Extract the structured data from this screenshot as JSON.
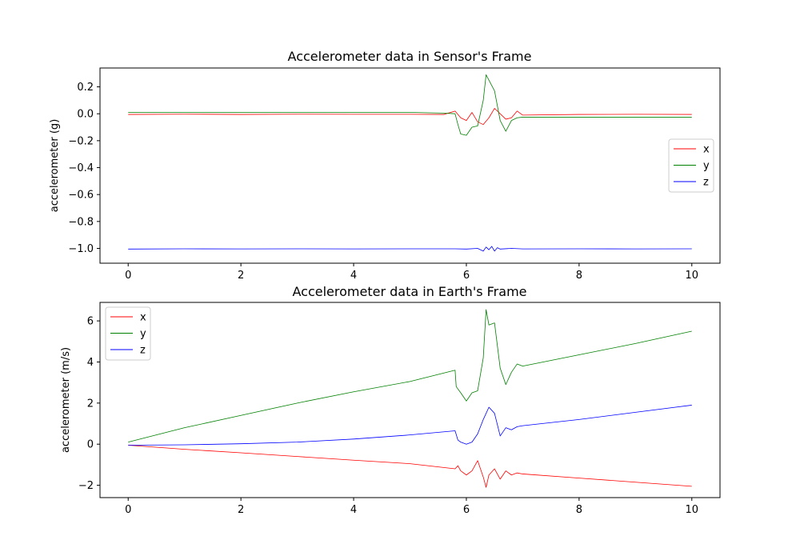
{
  "colors": {
    "x": "#ff0000",
    "y": "#008000",
    "z": "#0000ff"
  },
  "chart_data": [
    {
      "type": "line",
      "title": "Accelerometer data in Sensor's Frame",
      "xlabel": "",
      "ylabel": "accelerometer (g)",
      "xlim": [
        -0.5,
        10.5
      ],
      "ylim": [
        -1.11,
        0.34
      ],
      "xticks": [
        0,
        2,
        4,
        6,
        8,
        10
      ],
      "xtick_labels": [
        "0",
        "2",
        "4",
        "6",
        "8",
        "10"
      ],
      "yticks": [
        0.2,
        0.0,
        -0.2,
        -0.4,
        -0.6,
        -0.8,
        -1.0
      ],
      "ytick_labels": [
        "0.2",
        "0.0",
        "−0.2",
        "−0.4",
        "−0.6",
        "−0.8",
        "−1.0"
      ],
      "legend_placement": "center-right",
      "series": [
        {
          "name": "x",
          "color": "#ff0000",
          "x": [
            0,
            1,
            2,
            3,
            4,
            5,
            5.6,
            5.8,
            5.9,
            6.0,
            6.1,
            6.2,
            6.3,
            6.4,
            6.5,
            6.6,
            6.7,
            6.8,
            6.9,
            7.0,
            8,
            9,
            10
          ],
          "y": [
            -0.005,
            -0.003,
            -0.005,
            -0.003,
            -0.004,
            -0.004,
            -0.005,
            0.02,
            -0.03,
            -0.05,
            0.01,
            -0.06,
            -0.08,
            -0.03,
            0.04,
            0.0,
            -0.04,
            -0.03,
            0.02,
            -0.01,
            -0.005,
            -0.004,
            -0.005
          ]
        },
        {
          "name": "y",
          "color": "#008000",
          "x": [
            0,
            1,
            2,
            3,
            4,
            5,
            5.6,
            5.8,
            5.85,
            5.9,
            6.0,
            6.1,
            6.2,
            6.3,
            6.35,
            6.4,
            6.5,
            6.6,
            6.7,
            6.8,
            6.9,
            7.0,
            8,
            9,
            10
          ],
          "y": [
            0.01,
            0.01,
            0.01,
            0.01,
            0.01,
            0.01,
            0.005,
            0.0,
            -0.08,
            -0.15,
            -0.16,
            -0.1,
            -0.09,
            0.1,
            0.29,
            0.25,
            0.17,
            -0.05,
            -0.13,
            -0.05,
            -0.03,
            -0.025,
            -0.025,
            -0.025,
            -0.025
          ]
        },
        {
          "name": "z",
          "color": "#0000ff",
          "x": [
            0,
            1,
            2,
            3,
            4,
            5,
            5.8,
            6.0,
            6.2,
            6.3,
            6.35,
            6.4,
            6.45,
            6.5,
            6.55,
            6.6,
            6.8,
            7.0,
            8,
            9,
            10
          ],
          "y": [
            -1.005,
            -1.003,
            -1.004,
            -1.003,
            -1.004,
            -1.003,
            -1.003,
            -1.005,
            -1.0,
            -1.02,
            -0.99,
            -1.01,
            -0.985,
            -1.02,
            -0.995,
            -1.005,
            -1.0,
            -1.004,
            -1.003,
            -1.004,
            -1.003
          ]
        }
      ]
    },
    {
      "type": "line",
      "title": "Accelerometer data in Earth's Frame",
      "xlabel": "",
      "ylabel": "accelerometer (m/s)",
      "xlim": [
        -0.5,
        10.5
      ],
      "ylim": [
        -2.6,
        6.9
      ],
      "xticks": [
        0,
        2,
        4,
        6,
        8,
        10
      ],
      "xtick_labels": [
        "0",
        "2",
        "4",
        "6",
        "8",
        "10"
      ],
      "yticks": [
        6,
        4,
        2,
        0,
        -2
      ],
      "ytick_labels": [
        "6",
        "4",
        "2",
        "0",
        "−2"
      ],
      "legend_placement": "upper-left",
      "series": [
        {
          "name": "x",
          "color": "#ff0000",
          "x": [
            0,
            1,
            2,
            3,
            4,
            5,
            5.8,
            5.85,
            5.9,
            6.0,
            6.1,
            6.2,
            6.25,
            6.3,
            6.35,
            6.4,
            6.5,
            6.6,
            6.7,
            6.8,
            6.9,
            7.0,
            8,
            9,
            10
          ],
          "y": [
            -0.05,
            -0.25,
            -0.42,
            -0.6,
            -0.78,
            -0.95,
            -1.2,
            -1.05,
            -1.3,
            -1.5,
            -1.3,
            -0.8,
            -1.2,
            -1.6,
            -2.1,
            -1.5,
            -1.2,
            -1.7,
            -1.3,
            -1.5,
            -1.4,
            -1.45,
            -1.65,
            -1.85,
            -2.05
          ]
        },
        {
          "name": "y",
          "color": "#008000",
          "x": [
            0,
            1,
            2,
            3,
            4,
            5,
            5.8,
            5.82,
            5.9,
            6.0,
            6.1,
            6.2,
            6.3,
            6.35,
            6.4,
            6.5,
            6.6,
            6.7,
            6.8,
            6.9,
            7.0,
            8,
            9,
            10
          ],
          "y": [
            0.1,
            0.8,
            1.4,
            2.0,
            2.55,
            3.05,
            3.6,
            2.8,
            2.5,
            2.1,
            2.5,
            2.6,
            4.2,
            6.55,
            5.8,
            5.9,
            3.7,
            2.9,
            3.5,
            3.9,
            3.8,
            4.35,
            4.9,
            5.5
          ]
        },
        {
          "name": "z",
          "color": "#0000ff",
          "x": [
            0,
            1,
            2,
            3,
            4,
            5,
            5.8,
            5.85,
            5.9,
            6.0,
            6.1,
            6.2,
            6.3,
            6.4,
            6.5,
            6.6,
            6.7,
            6.8,
            6.9,
            7.0,
            8,
            9,
            10
          ],
          "y": [
            -0.05,
            -0.03,
            0.02,
            0.1,
            0.25,
            0.45,
            0.65,
            0.2,
            0.1,
            0.0,
            0.1,
            0.5,
            1.2,
            1.8,
            1.5,
            0.4,
            0.8,
            0.7,
            0.85,
            0.9,
            1.2,
            1.55,
            1.9
          ]
        }
      ]
    }
  ]
}
